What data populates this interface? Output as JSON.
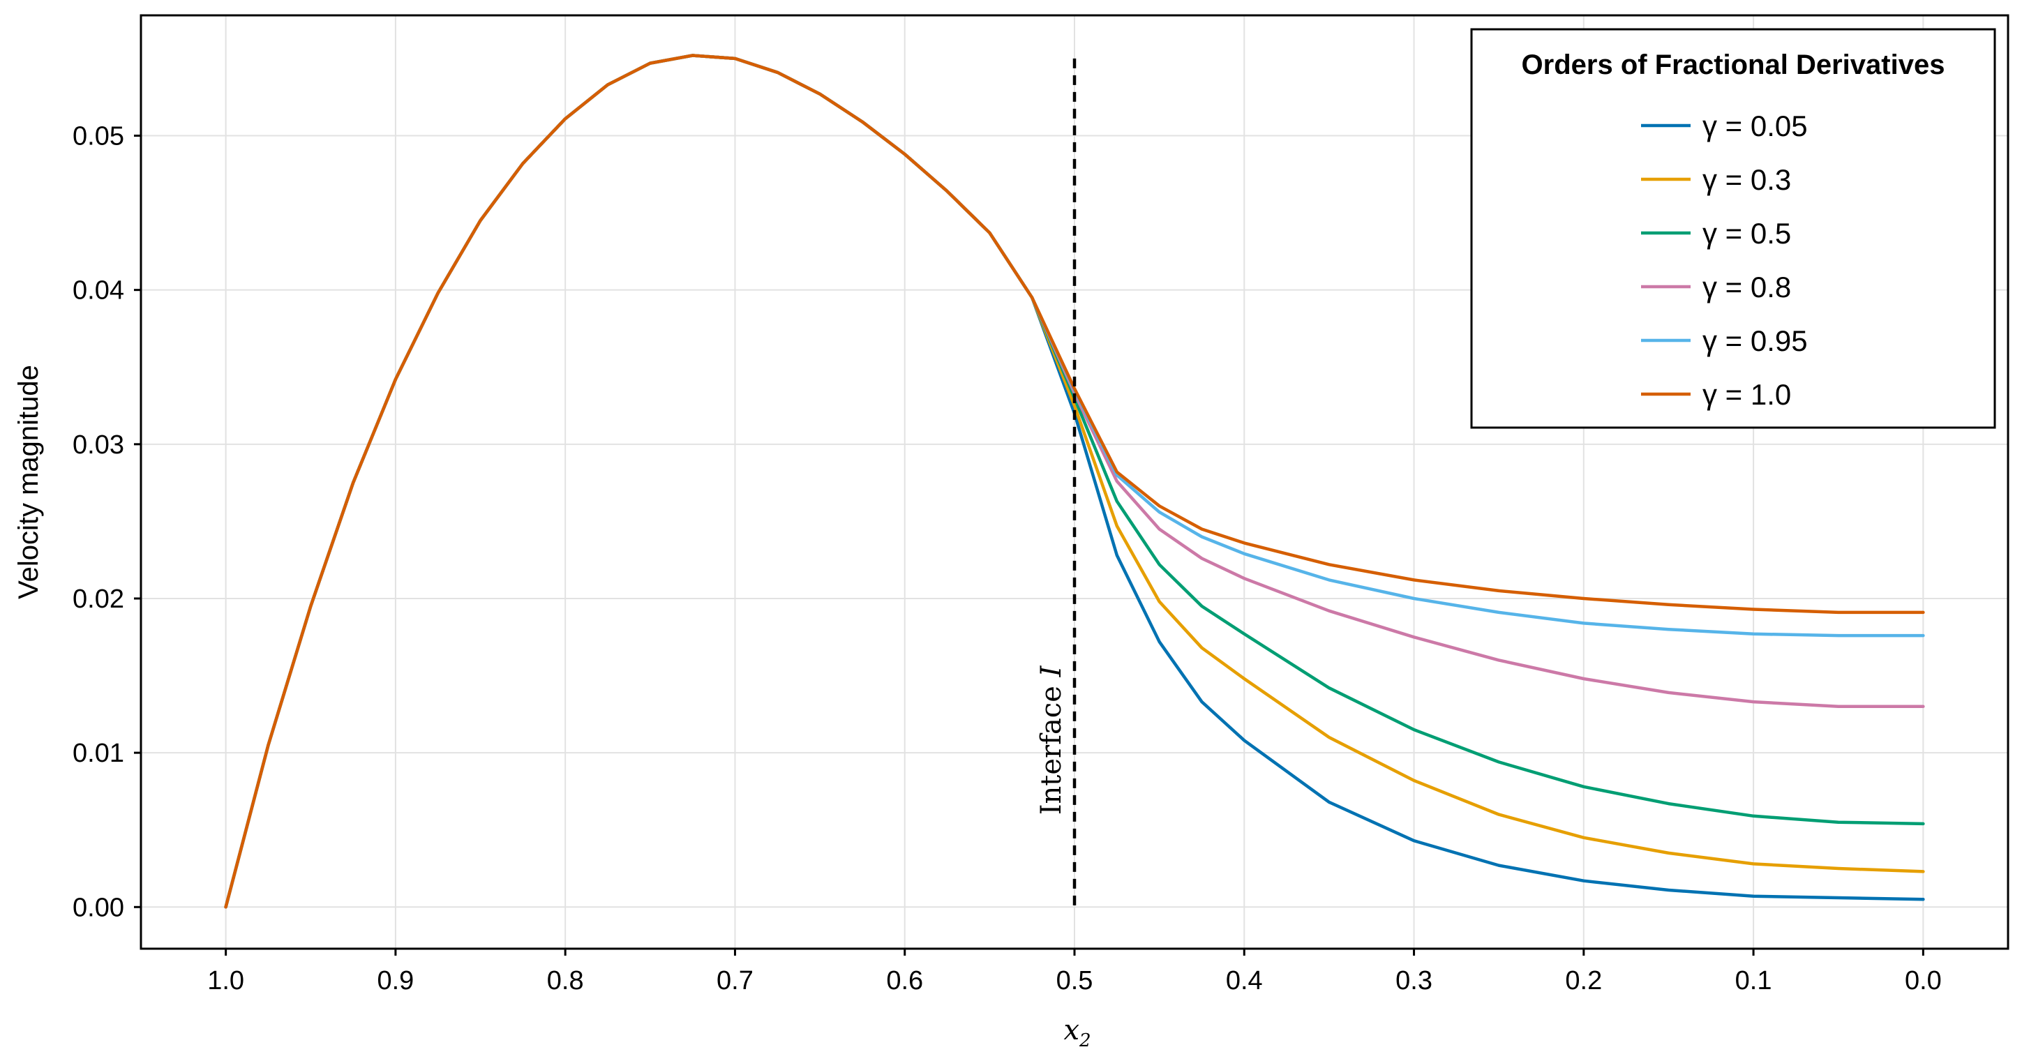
{
  "chart_data": {
    "type": "line",
    "xlabel_base": "x",
    "xlabel_sub": "2",
    "ylabel": "Velocity magnitude",
    "xlim": [
      1.05,
      -0.05
    ],
    "ylim": [
      -0.0027,
      0.0578
    ],
    "x_reversed": true,
    "grid": true,
    "x_ticks": [
      1.0,
      0.9,
      0.8,
      0.7,
      0.6,
      0.5,
      0.4,
      0.3,
      0.2,
      0.1,
      0.0
    ],
    "x_tick_labels": [
      "1.0",
      "0.9",
      "0.8",
      "0.7",
      "0.6",
      "0.5",
      "0.4",
      "0.3",
      "0.2",
      "0.1",
      "0.0"
    ],
    "y_ticks": [
      0.0,
      0.01,
      0.02,
      0.03,
      0.04,
      0.05
    ],
    "y_tick_labels": [
      "0.00",
      "0.01",
      "0.02",
      "0.03",
      "0.04",
      "0.05"
    ],
    "legend": {
      "title": "Orders of Fractional Derivatives",
      "placement": "top-right"
    },
    "annotation": {
      "x": 0.5,
      "y_range": [
        0.0,
        0.055
      ],
      "style": "dashed",
      "label_main": "Interface ",
      "label_italic": "I"
    },
    "shared_x": [
      1.0,
      0.975,
      0.95,
      0.925,
      0.9,
      0.875,
      0.85,
      0.825,
      0.8,
      0.775,
      0.75,
      0.725,
      0.7,
      0.675,
      0.65,
      0.625,
      0.6,
      0.575,
      0.55,
      0.525
    ],
    "shared_y": [
      0.0,
      0.0105,
      0.0195,
      0.0275,
      0.0342,
      0.0398,
      0.0445,
      0.0482,
      0.0511,
      0.0533,
      0.0547,
      0.0552,
      0.055,
      0.0541,
      0.0527,
      0.0509,
      0.0488,
      0.0464,
      0.0437,
      0.0395
    ],
    "x": [
      0.5,
      0.475,
      0.45,
      0.425,
      0.4,
      0.35,
      0.3,
      0.25,
      0.2,
      0.15,
      0.1,
      0.05,
      0.0
    ],
    "series": [
      {
        "name": "γ = 0.05",
        "color": "#0072B2",
        "values": [
          0.032,
          0.0228,
          0.0172,
          0.0133,
          0.0108,
          0.0068,
          0.0043,
          0.0027,
          0.0017,
          0.0011,
          0.0007,
          0.0006,
          0.0005
        ]
      },
      {
        "name": "γ = 0.3",
        "color": "#E69F00",
        "values": [
          0.0325,
          0.0247,
          0.0198,
          0.0168,
          0.0148,
          0.011,
          0.0082,
          0.006,
          0.0045,
          0.0035,
          0.0028,
          0.0025,
          0.0023
        ]
      },
      {
        "name": "γ = 0.5",
        "color": "#009E73",
        "values": [
          0.033,
          0.0263,
          0.0222,
          0.0195,
          0.0177,
          0.0142,
          0.0115,
          0.0094,
          0.0078,
          0.0067,
          0.0059,
          0.0055,
          0.0054
        ]
      },
      {
        "name": "γ = 0.8",
        "color": "#CC79A7",
        "values": [
          0.0333,
          0.0276,
          0.0245,
          0.0226,
          0.0213,
          0.0192,
          0.0175,
          0.016,
          0.0148,
          0.0139,
          0.0133,
          0.013,
          0.013
        ]
      },
      {
        "name": "γ = 0.95",
        "color": "#56B4E9",
        "values": [
          0.0335,
          0.028,
          0.0256,
          0.024,
          0.0229,
          0.0212,
          0.02,
          0.0191,
          0.0184,
          0.018,
          0.0177,
          0.0176,
          0.0176
        ]
      },
      {
        "name": "γ = 1.0",
        "color": "#D55E00",
        "values": [
          0.0336,
          0.0282,
          0.026,
          0.0245,
          0.0236,
          0.0222,
          0.0212,
          0.0205,
          0.02,
          0.0196,
          0.0193,
          0.0191,
          0.0191
        ]
      }
    ]
  }
}
